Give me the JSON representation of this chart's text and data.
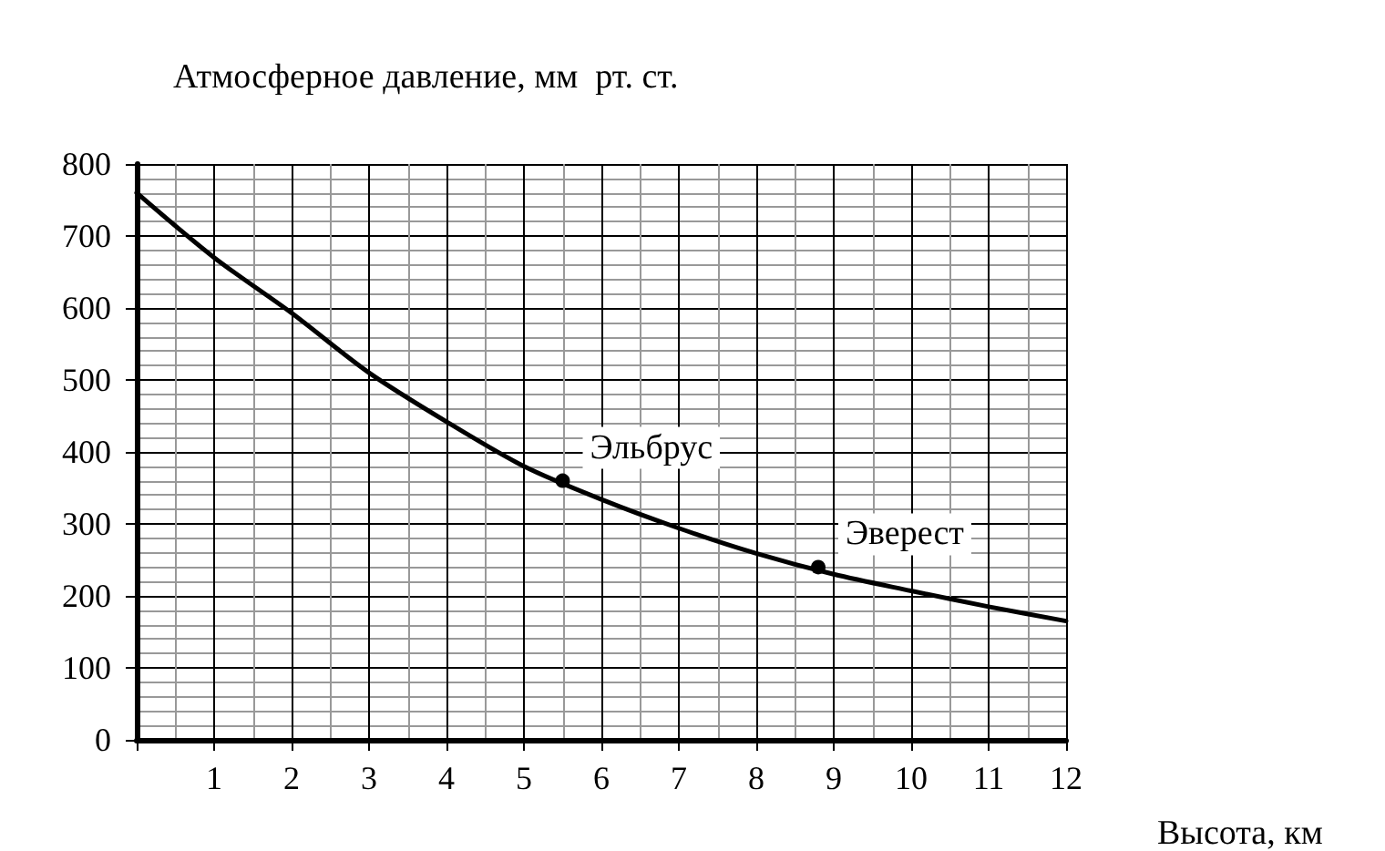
{
  "chart_data": {
    "type": "line",
    "ylabel": "Атмосферное давление, мм  рт. ст.",
    "xlabel": "Высота, км",
    "series": [
      {
        "color": "#000000",
        "marker": "none",
        "x": [
          0,
          1,
          2,
          3,
          4,
          5,
          6,
          7,
          8,
          9,
          10,
          11,
          12
        ],
        "values": [
          760,
          670,
          593,
          510,
          442,
          380,
          334,
          294,
          259,
          230,
          207,
          185,
          165
        ]
      },
      {
        "type": "scatter",
        "color": "#000000",
        "marker": "circle",
        "x": [
          5.5,
          8.8
        ],
        "values": [
          360,
          240
        ]
      }
    ],
    "annotations": [
      {
        "text": "Эльбрус",
        "x": 5.5,
        "y": 360
      },
      {
        "text": "Эверест",
        "x": 8.8,
        "y": 240
      }
    ],
    "xlim": [
      0,
      12
    ],
    "ylim": [
      0,
      800
    ],
    "xticks": [
      {
        "value": 0,
        "label": null
      },
      1,
      2,
      3,
      4,
      5,
      6,
      7,
      8,
      9,
      10,
      11,
      12
    ],
    "yticks": [
      0,
      100,
      200,
      300,
      400,
      500,
      600,
      700,
      800
    ],
    "grid": true
  }
}
